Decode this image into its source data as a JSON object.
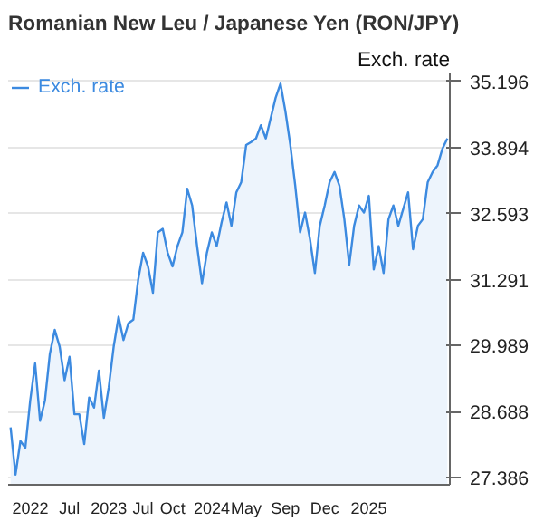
{
  "chart_data": {
    "type": "area",
    "title": "Romanian New Leu / Japanese Yen (RON/JPY)",
    "ylabel": "Exch. rate",
    "categories": [
      null,
      null,
      null,
      null,
      "2022",
      null,
      null,
      null,
      null,
      null,
      null,
      null,
      "Jul",
      null,
      null,
      null,
      null,
      null,
      null,
      null,
      "2023",
      null,
      null,
      null,
      null,
      null,
      null,
      "Jul",
      null,
      null,
      null,
      null,
      null,
      "Oct",
      null,
      null,
      null,
      null,
      null,
      null,
      null,
      "2024",
      null,
      null,
      null,
      null,
      null,
      null,
      "May",
      null,
      null,
      null,
      null,
      null,
      null,
      null,
      "Sep",
      null,
      null,
      null,
      null,
      null,
      null,
      null,
      "Dec",
      null,
      null,
      null,
      null,
      null,
      null,
      null,
      null,
      "2025",
      null,
      null,
      null,
      null,
      null,
      null,
      null,
      null,
      null,
      null,
      null,
      null,
      null,
      null,
      null,
      null
    ],
    "series": [
      {
        "name": "Exch. rate",
        "color": "#3c8ae0",
        "values": [
          28.38,
          27.45,
          28.11,
          27.98,
          28.91,
          29.64,
          28.51,
          28.91,
          29.83,
          30.3,
          29.97,
          29.31,
          29.77,
          28.64,
          28.64,
          28.05,
          28.97,
          28.77,
          29.5,
          28.57,
          29.17,
          29.97,
          30.56,
          30.1,
          30.43,
          30.5,
          31.29,
          31.82,
          31.55,
          31.03,
          32.22,
          32.29,
          31.82,
          31.55,
          31.95,
          32.22,
          33.08,
          32.75,
          31.95,
          31.22,
          31.82,
          32.22,
          31.95,
          32.42,
          32.81,
          32.35,
          33.01,
          33.21,
          33.94,
          34.0,
          34.07,
          34.33,
          34.07,
          34.47,
          34.87,
          35.15,
          34.6,
          33.94,
          33.14,
          32.22,
          32.61,
          32.09,
          31.42,
          32.35,
          32.75,
          33.21,
          33.41,
          33.14,
          32.48,
          31.58,
          32.35,
          32.75,
          32.61,
          32.94,
          31.49,
          31.95,
          31.42,
          32.48,
          32.75,
          32.35,
          32.68,
          33.01,
          31.89,
          32.35,
          32.48,
          33.21,
          33.41,
          33.54,
          33.87,
          34.07
        ]
      }
    ],
    "ylim": [
      27.25,
      35.35
    ],
    "yticks": [
      27.386,
      28.688,
      29.989,
      31.291,
      32.593,
      33.894,
      35.196
    ],
    "grid": "y",
    "legend": "top left",
    "line_style": "solid",
    "marker": "none"
  }
}
